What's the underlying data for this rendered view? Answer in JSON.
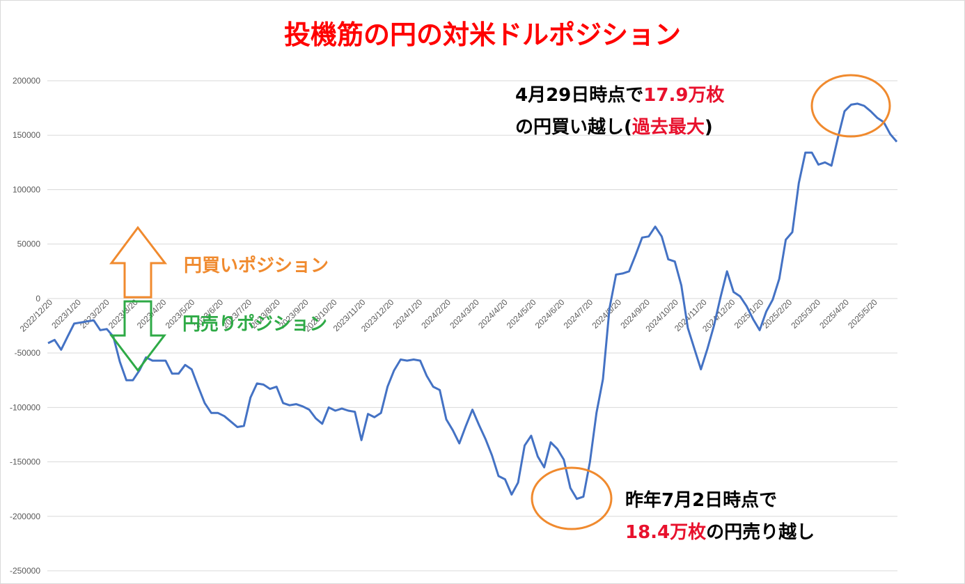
{
  "chart_data": {
    "type": "line",
    "title": "投機筋の円の対米ドルポジション",
    "xlabel": "",
    "ylabel": "",
    "ylim": [
      -250000,
      200000
    ],
    "y_ticks": [
      200000,
      150000,
      100000,
      50000,
      0,
      -50000,
      -100000,
      -150000,
      -200000,
      -250000
    ],
    "grid": true,
    "legend": "none",
    "line_color": "#4472c4",
    "x_tick_labels": [
      "2022/12/20",
      "2023/1/20",
      "2023/2/20",
      "2023/3/20",
      "2023/4/20",
      "2023/5/20",
      "2023/6/20",
      "2023/7/20",
      "2023/8/20",
      "2023/9/20",
      "2023/10/20",
      "2023/11/20",
      "2023/12/20",
      "2024/1/20",
      "2024/2/20",
      "2024/3/20",
      "2024/4/20",
      "2024/5/20",
      "2024/6/20",
      "2024/7/20",
      "2024/8/20",
      "2024/9/20",
      "2024/10/20",
      "2024/11/20",
      "2024/12/20",
      "2025/1/20",
      "2025/2/20",
      "2025/3/20",
      "2025/4/20",
      "2025/5/20"
    ],
    "series": [
      {
        "values": [
          -41000,
          -38000,
          -47000,
          -35000,
          -23000,
          -22000,
          -21000,
          -20000,
          -29000,
          -28000,
          -35000,
          -58000,
          -75000,
          -75000,
          -66000,
          -54000,
          -57000,
          -57000,
          -57000,
          -69000,
          -69000,
          -61000,
          -65000,
          -81000,
          -96000,
          -105000,
          -105000,
          -108000,
          -113000,
          -118000,
          -117000,
          -91000,
          -78000,
          -79000,
          -83000,
          -81000,
          -96000,
          -98000,
          -97000,
          -99000,
          -102000,
          -110000,
          -115000,
          -100000,
          -103000,
          -101000,
          -103000,
          -104000,
          -130000,
          -106000,
          -109000,
          -105000,
          -81000,
          -66000,
          -56000,
          -57000,
          -56000,
          -57000,
          -71000,
          -81000,
          -84000,
          -111000,
          -121000,
          -133000,
          -117000,
          -102000,
          -116000,
          -129000,
          -144000,
          -163000,
          -166000,
          -180000,
          -169000,
          -135000,
          -126000,
          -145000,
          -155000,
          -132000,
          -138000,
          -148000,
          -174000,
          -184000,
          -182000,
          -150000,
          -105000,
          -74000,
          -9000,
          22000,
          23000,
          25000,
          40000,
          56000,
          57000,
          66000,
          57000,
          36000,
          34000,
          12000,
          -27000,
          -46000,
          -65000,
          -46000,
          -25000,
          1000,
          25000,
          6000,
          2000,
          -7000,
          -19000,
          -29000,
          -12000,
          -1000,
          18000,
          54000,
          61000,
          106000,
          134000,
          134000,
          123000,
          125000,
          122000,
          148000,
          172000,
          178000,
          179000,
          177000,
          172000,
          166000,
          162000,
          151000,
          144000
        ]
      }
    ],
    "annotations": {
      "top_line1_a": "4月29日時点で",
      "top_line1_b": "17.9万枚",
      "top_line2_a": "の円買い越し(",
      "top_line2_b": "過去最大",
      "top_line2_c": ")",
      "bottom_line1": "昨年7月2日時点で",
      "bottom_line2_a": "18.4万枚",
      "bottom_line2_b": "の円売り越し",
      "buy_label": "円買いポジション",
      "sell_label": "円売りポジション"
    },
    "colors": {
      "title": "#ff0000",
      "buy_arrow": "#f08a2e",
      "sell_arrow": "#2eaa46",
      "ellipse": "#f08a2e",
      "emphasis": "#e8112d"
    }
  }
}
